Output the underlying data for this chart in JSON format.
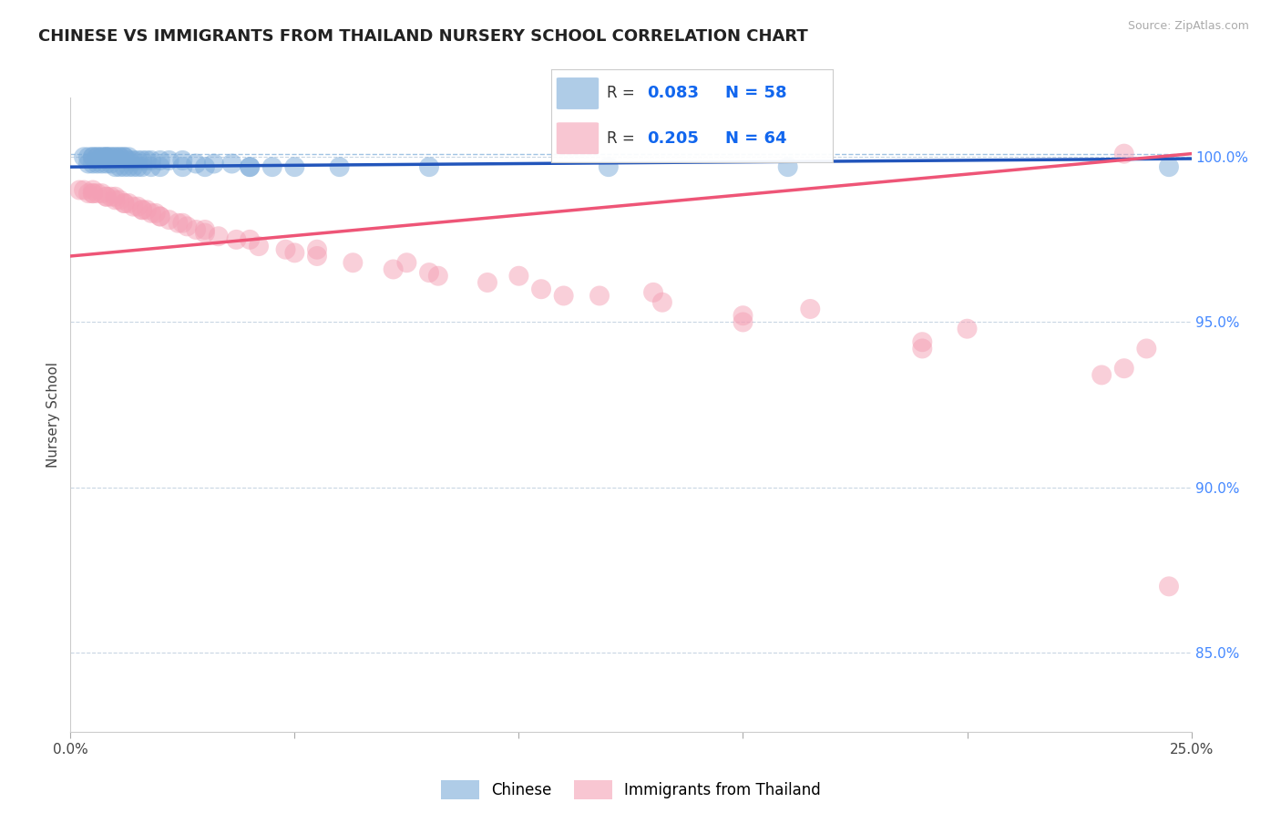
{
  "title": "CHINESE VS IMMIGRANTS FROM THAILAND NURSERY SCHOOL CORRELATION CHART",
  "source_text": "Source: ZipAtlas.com",
  "ylabel": "Nursery School",
  "x_min": 0.0,
  "x_max": 0.25,
  "y_min": 0.826,
  "y_max": 1.018,
  "ytick_labels": [
    "85.0%",
    "90.0%",
    "95.0%",
    "100.0%"
  ],
  "ytick_vals": [
    0.85,
    0.9,
    0.95,
    1.0
  ],
  "xtick_labels": [
    "0.0%",
    "25.0%"
  ],
  "xtick_vals": [
    0.0,
    0.25
  ],
  "blue_label": "Chinese",
  "pink_label": "Immigrants from Thailand",
  "blue_R": 0.083,
  "blue_N": 58,
  "pink_R": 0.205,
  "pink_N": 64,
  "blue_color": "#7AAAD8",
  "pink_color": "#F4A0B5",
  "blue_line_color": "#2255BB",
  "pink_line_color": "#EE5577",
  "legend_R_color": "#1166EE",
  "right_tick_color": "#4488FF",
  "grid_color": "#BBCCDD",
  "background_color": "#FFFFFF",
  "title_fontsize": 13,
  "axis_label_fontsize": 11,
  "tick_label_fontsize": 11,
  "blue_trend_x0": 0.0,
  "blue_trend_y0": 0.997,
  "blue_trend_x1": 0.25,
  "blue_trend_y1": 0.9995,
  "pink_trend_x0": 0.0,
  "pink_trend_y0": 0.97,
  "pink_trend_x1": 0.25,
  "pink_trend_y1": 1.001,
  "blue_x": [
    0.003,
    0.004,
    0.005,
    0.005,
    0.006,
    0.006,
    0.007,
    0.007,
    0.008,
    0.008,
    0.008,
    0.009,
    0.009,
    0.01,
    0.01,
    0.011,
    0.011,
    0.012,
    0.012,
    0.013,
    0.013,
    0.014,
    0.015,
    0.016,
    0.017,
    0.018,
    0.02,
    0.022,
    0.025,
    0.028,
    0.032,
    0.036,
    0.04,
    0.045,
    0.05,
    0.004,
    0.005,
    0.006,
    0.007,
    0.008,
    0.009,
    0.01,
    0.011,
    0.012,
    0.013,
    0.014,
    0.015,
    0.016,
    0.018,
    0.02,
    0.025,
    0.03,
    0.04,
    0.06,
    0.08,
    0.12,
    0.16,
    0.245
  ],
  "blue_y": [
    1.0,
    1.0,
    1.0,
    1.0,
    1.0,
    1.0,
    1.0,
    1.0,
    1.0,
    1.0,
    1.0,
    1.0,
    1.0,
    1.0,
    1.0,
    1.0,
    1.0,
    1.0,
    1.0,
    1.0,
    0.999,
    0.999,
    0.999,
    0.999,
    0.999,
    0.999,
    0.999,
    0.999,
    0.999,
    0.998,
    0.998,
    0.998,
    0.997,
    0.997,
    0.997,
    0.998,
    0.998,
    0.998,
    0.998,
    0.998,
    0.998,
    0.997,
    0.997,
    0.997,
    0.997,
    0.997,
    0.997,
    0.997,
    0.997,
    0.997,
    0.997,
    0.997,
    0.997,
    0.997,
    0.997,
    0.997,
    0.997,
    0.997
  ],
  "pink_x": [
    0.002,
    0.003,
    0.004,
    0.005,
    0.005,
    0.006,
    0.007,
    0.008,
    0.009,
    0.01,
    0.01,
    0.011,
    0.012,
    0.013,
    0.014,
    0.015,
    0.016,
    0.017,
    0.018,
    0.019,
    0.02,
    0.022,
    0.024,
    0.026,
    0.028,
    0.03,
    0.033,
    0.037,
    0.042,
    0.048,
    0.055,
    0.063,
    0.072,
    0.082,
    0.093,
    0.105,
    0.118,
    0.132,
    0.005,
    0.008,
    0.012,
    0.016,
    0.02,
    0.025,
    0.03,
    0.04,
    0.055,
    0.075,
    0.1,
    0.13,
    0.165,
    0.2,
    0.24,
    0.05,
    0.08,
    0.11,
    0.15,
    0.19,
    0.23,
    0.15,
    0.19,
    0.235,
    0.235,
    0.245
  ],
  "pink_y": [
    0.99,
    0.99,
    0.989,
    0.989,
    0.989,
    0.989,
    0.989,
    0.988,
    0.988,
    0.988,
    0.987,
    0.987,
    0.986,
    0.986,
    0.985,
    0.985,
    0.984,
    0.984,
    0.983,
    0.983,
    0.982,
    0.981,
    0.98,
    0.979,
    0.978,
    0.977,
    0.976,
    0.975,
    0.973,
    0.972,
    0.97,
    0.968,
    0.966,
    0.964,
    0.962,
    0.96,
    0.958,
    0.956,
    0.99,
    0.988,
    0.986,
    0.984,
    0.982,
    0.98,
    0.978,
    0.975,
    0.972,
    0.968,
    0.964,
    0.959,
    0.954,
    0.948,
    0.942,
    0.971,
    0.965,
    0.958,
    0.95,
    0.942,
    0.934,
    0.952,
    0.944,
    0.936,
    1.001,
    0.87
  ]
}
